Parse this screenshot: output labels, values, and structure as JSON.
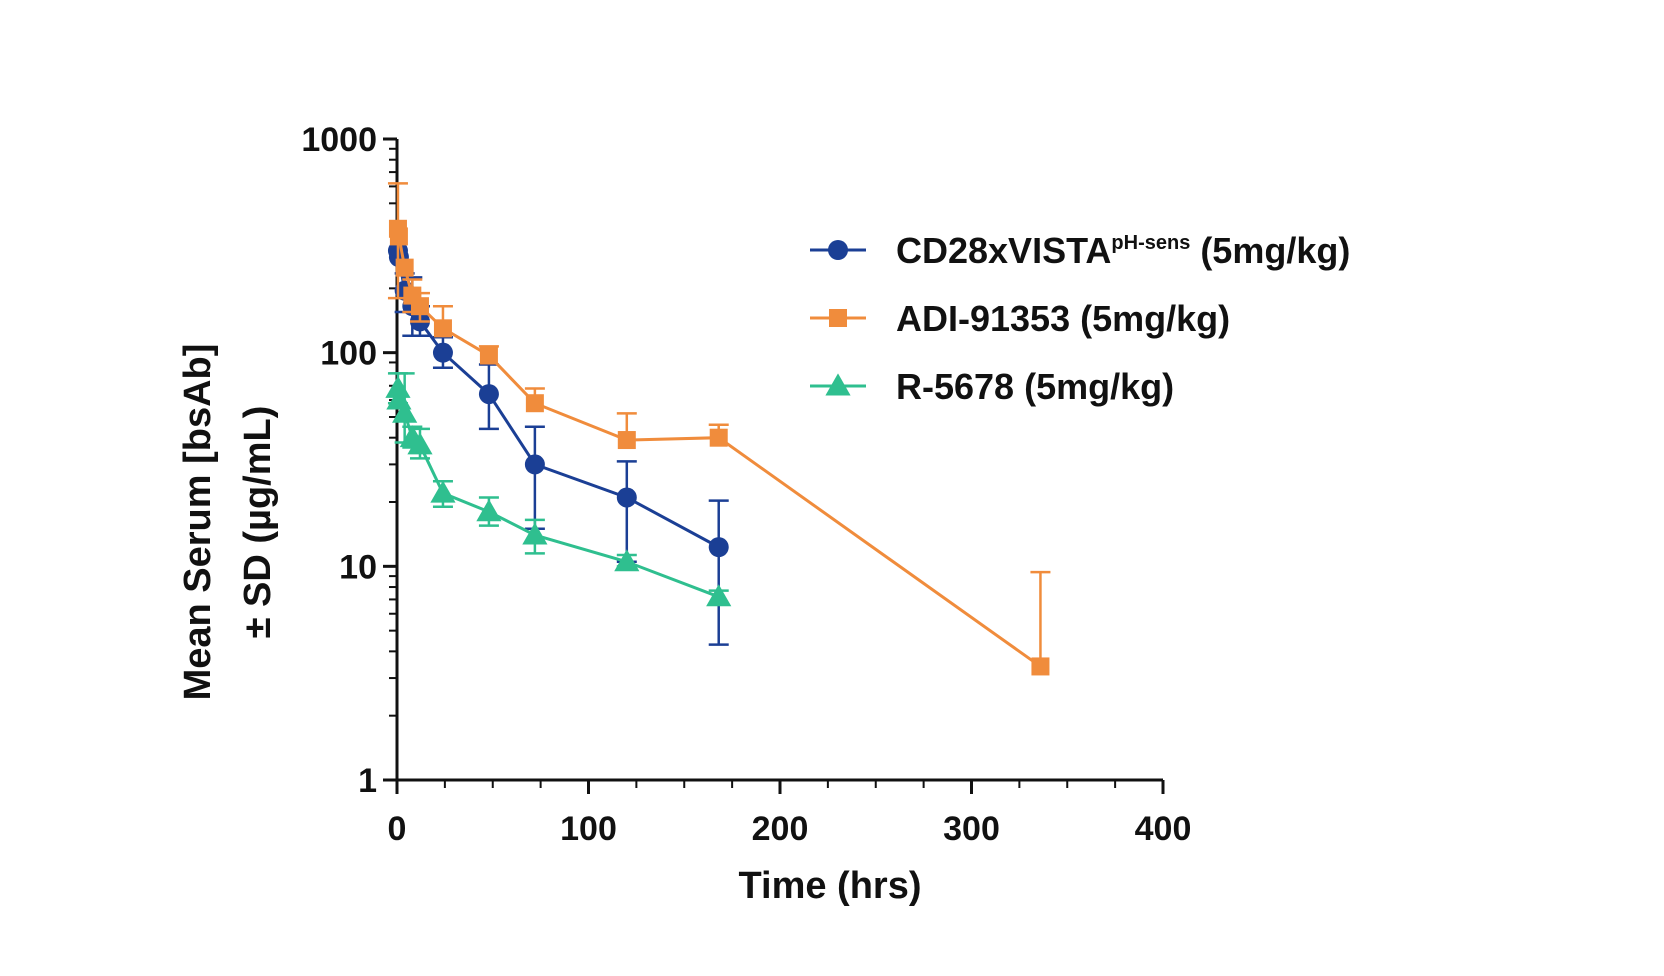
{
  "chart_data": {
    "type": "line",
    "title": "",
    "xlabel": "Time (hrs)",
    "ylabel_line1": "Mean Serum [bsAb]",
    "ylabel_line2": "± SD (µg/mL)",
    "yscale": "log",
    "xlim": [
      0,
      400
    ],
    "ylim": [
      1,
      1000
    ],
    "x_ticks": [
      0,
      100,
      200,
      300,
      400
    ],
    "x_tick_labels": [
      "0",
      "100",
      "200",
      "300",
      "400"
    ],
    "y_ticks": [
      1,
      10,
      100,
      1000
    ],
    "y_tick_labels": [
      "1",
      "10",
      "100",
      "1000"
    ],
    "grid": false,
    "legend_position": "top-right",
    "series": [
      {
        "name": "CD28xVISTA",
        "name_sup": "pH-sens",
        "name_suffix": " (5mg/kg)",
        "color": "#1b3f95",
        "marker": "circle",
        "x": [
          0.5,
          1,
          4,
          8,
          12,
          24,
          48,
          72,
          120,
          168
        ],
        "y": [
          300,
          280,
          195,
          165,
          140,
          100,
          64,
          30,
          21,
          12.3
        ],
        "err_up": [
          0,
          0,
          40,
          60,
          25,
          18,
          24,
          15,
          10,
          8
        ],
        "err_down": [
          0,
          0,
          40,
          45,
          20,
          15,
          20,
          15,
          10.5,
          8
        ]
      },
      {
        "name": "ADI-91353 (5mg/kg)",
        "color": "#f08c3c",
        "marker": "square",
        "x": [
          0.5,
          1,
          4,
          8,
          12,
          24,
          48,
          72,
          120,
          168,
          336
        ],
        "y": [
          380,
          350,
          250,
          185,
          165,
          130,
          97,
          58,
          39,
          40,
          3.4
        ],
        "err_up": [
          240,
          0,
          0,
          35,
          25,
          35,
          10,
          10,
          13,
          6,
          6
        ],
        "err_down": [
          200,
          0,
          0,
          30,
          25,
          0,
          0,
          0,
          0,
          0,
          0
        ]
      },
      {
        "name": "R-5678 (5mg/kg)",
        "color": "#2fbf8f",
        "marker": "triangle",
        "x": [
          0.5,
          1,
          4,
          8,
          12,
          24,
          48,
          72,
          120,
          168
        ],
        "y": [
          68,
          60,
          52,
          40,
          37,
          22,
          18,
          14,
          10.5,
          7.2
        ],
        "err_up": [
          12,
          0,
          28,
          5,
          7,
          3,
          3,
          2.5,
          0.8,
          0.5
        ],
        "err_down": [
          10,
          0,
          14,
          4,
          5,
          3,
          2.5,
          2.5,
          0.5,
          0.5
        ]
      }
    ]
  }
}
